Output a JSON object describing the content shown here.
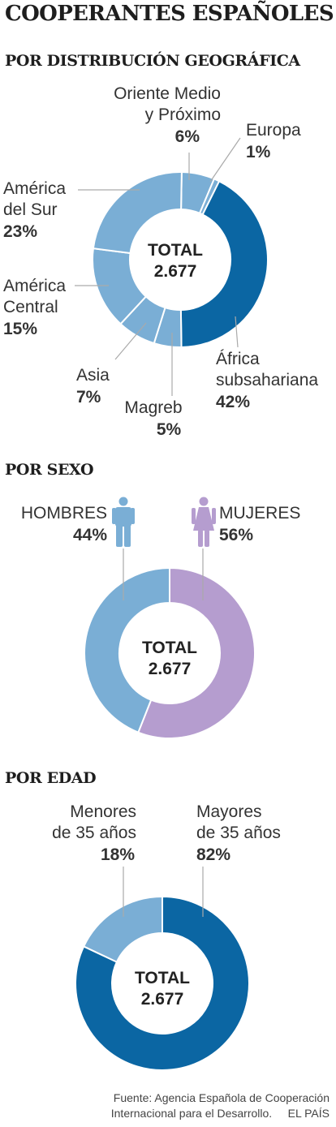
{
  "title": "COOPERANTES ESPAÑOLES",
  "colors": {
    "dark_blue": "#0b66a3",
    "light_blue": "#7aaed5",
    "purple": "#b59dcf",
    "leader": "#aaaaaa"
  },
  "chart_data": [
    {
      "type": "pie",
      "title": "POR DISTRIBUCIÓN GEOGRÁFICA",
      "center_label": "TOTAL",
      "total": "2.677",
      "slices": [
        {
          "name": "Oriente Medio y Próximo",
          "value": 6,
          "label": "6%",
          "color": "#7aaed5"
        },
        {
          "name": "Europa",
          "value": 1,
          "label": "1%",
          "color": "#7aaed5"
        },
        {
          "name": "África subsahariana",
          "value": 42,
          "label": "42%",
          "color": "#0b66a3"
        },
        {
          "name": "Magreb",
          "value": 5,
          "label": "5%",
          "color": "#7aaed5"
        },
        {
          "name": "Asia",
          "value": 7,
          "label": "7%",
          "color": "#7aaed5"
        },
        {
          "name": "América Central",
          "value": 15,
          "label": "15%",
          "color": "#7aaed5"
        },
        {
          "name": "América del Sur",
          "value": 23,
          "label": "23%",
          "color": "#7aaed5"
        }
      ]
    },
    {
      "type": "pie",
      "title": "POR SEXO",
      "center_label": "TOTAL",
      "total": "2.677",
      "slices": [
        {
          "name": "MUJERES",
          "value": 56,
          "label": "56%",
          "color": "#b59dcf",
          "icon": "woman-icon"
        },
        {
          "name": "HOMBRES",
          "value": 44,
          "label": "44%",
          "color": "#7aaed5",
          "icon": "man-icon"
        }
      ]
    },
    {
      "type": "pie",
      "title": "POR EDAD",
      "center_label": "TOTAL",
      "total": "2.677",
      "slices": [
        {
          "name": "Mayores de 35 años",
          "value": 82,
          "label": "82%",
          "color": "#0b66a3"
        },
        {
          "name": "Menores de 35 años",
          "value": 18,
          "label": "18%",
          "color": "#7aaed5"
        }
      ]
    }
  ],
  "labels": {
    "geo": {
      "oriente": "Oriente Medio\ny Próximo",
      "europa": "Europa",
      "africa": "África\nsubsahariana",
      "magreb": "Magreb",
      "asia": "Asia",
      "central": "América\nCentral",
      "sur": "América\ndel Sur"
    },
    "edad": {
      "menores": "Menores\nde 35 años",
      "mayores": "Mayores\nde 35 años"
    }
  },
  "source": "Fuente: Agencia Española de Cooperación\nInternacional para el Desarrollo.     EL PAÍS"
}
